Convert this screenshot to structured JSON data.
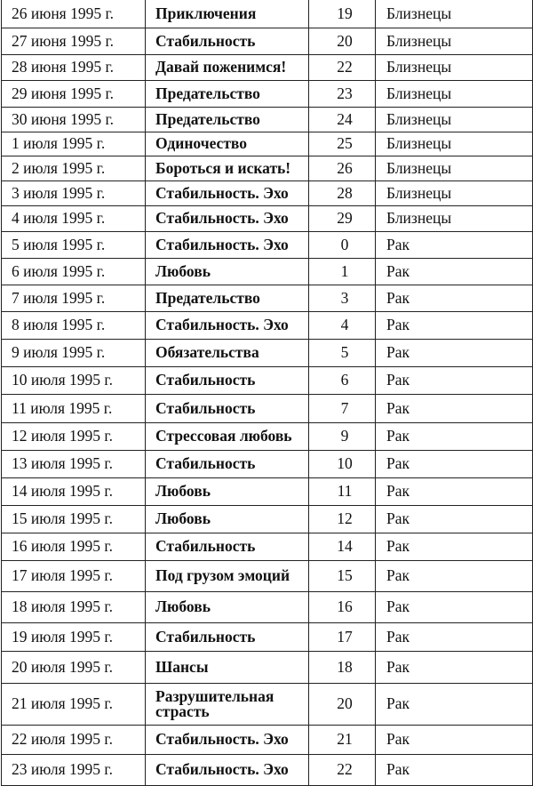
{
  "table": {
    "rows": [
      {
        "date": "26 июня 1995 г.",
        "theme": "Приключения",
        "degree": "19",
        "sign": "Близнецы"
      },
      {
        "date": "27 июня 1995 г.",
        "theme": "Стабильность",
        "degree": "20",
        "sign": "Близнецы"
      },
      {
        "date": "28 июня 1995 г.",
        "theme": "Давай поженимся!",
        "degree": "22",
        "sign": "Близнецы"
      },
      {
        "date": "29 июня 1995 г.",
        "theme": "Предательство",
        "degree": "23",
        "sign": "Близнецы"
      },
      {
        "date": "30 июня 1995 г.",
        "theme": "Предательство",
        "degree": "24",
        "sign": "Близнецы"
      },
      {
        "date": "1 июля 1995 г.",
        "theme": "Одиночество",
        "degree": "25",
        "sign": "Близнецы"
      },
      {
        "date": "2 июля 1995 г.",
        "theme": "Бороться и искать!",
        "degree": "26",
        "sign": "Близнецы"
      },
      {
        "date": "3 июля 1995 г.",
        "theme": "Стабильность. Эхо",
        "degree": "28",
        "sign": "Близнецы"
      },
      {
        "date": "4 июля 1995 г.",
        "theme": "Стабильность. Эхо",
        "degree": "29",
        "sign": "Близнецы"
      },
      {
        "date": "5 июля 1995 г.",
        "theme": "Стабильность. Эхо",
        "degree": "0",
        "sign": "Рак"
      },
      {
        "date": "6 июля 1995 г.",
        "theme": "Любовь",
        "degree": "1",
        "sign": "Рак"
      },
      {
        "date": "7 июля 1995 г.",
        "theme": "Предательство",
        "degree": "3",
        "sign": "Рак"
      },
      {
        "date": "8 июля 1995 г.",
        "theme": "Стабильность. Эхо",
        "degree": "4",
        "sign": "Рак"
      },
      {
        "date": "9 июля 1995 г.",
        "theme": "Обязательства",
        "degree": "5",
        "sign": "Рак"
      },
      {
        "date": "10 июля 1995 г.",
        "theme": "Стабильность",
        "degree": "6",
        "sign": "Рак"
      },
      {
        "date": "11 июля 1995 г.",
        "theme": "Стабильность",
        "degree": "7",
        "sign": "Рак"
      },
      {
        "date": "12 июля 1995 г.",
        "theme": "Стрессовая любовь",
        "degree": "9",
        "sign": "Рак"
      },
      {
        "date": "13 июля 1995 г.",
        "theme": "Стабильность",
        "degree": "10",
        "sign": "Рак"
      },
      {
        "date": "14 июля 1995 г.",
        "theme": "Любовь",
        "degree": "11",
        "sign": "Рак"
      },
      {
        "date": "15 июля 1995 г.",
        "theme": "Любовь",
        "degree": "12",
        "sign": "Рак"
      },
      {
        "date": "16 июля 1995 г.",
        "theme": "Стабильность",
        "degree": "14",
        "sign": "Рак"
      },
      {
        "date": "17 июля 1995 г.",
        "theme": "Под грузом эмоций",
        "degree": "15",
        "sign": "Рак"
      },
      {
        "date": "18 июля 1995 г.",
        "theme": "Любовь",
        "degree": "16",
        "sign": "Рак"
      },
      {
        "date": "19 июля 1995 г.",
        "theme": "Стабильность",
        "degree": "17",
        "sign": "Рак"
      },
      {
        "date": "20 июля 1995 г.",
        "theme": "Шансы",
        "degree": "18",
        "sign": "Рак"
      },
      {
        "date": "21 июля 1995 г.",
        "theme": "Разрушительная страсть",
        "degree": "20",
        "sign": "Рак"
      },
      {
        "date": "22 июля 1995 г.",
        "theme": "Стабильность. Эхо",
        "degree": "21",
        "sign": "Рак"
      },
      {
        "date": "23 июля 1995 г.",
        "theme": "Стабильность. Эхо",
        "degree": "22",
        "sign": "Рак"
      }
    ]
  }
}
